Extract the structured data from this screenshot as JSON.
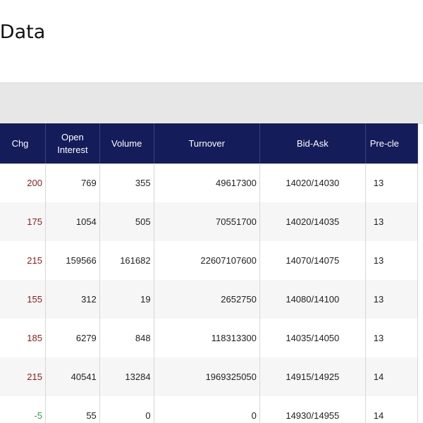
{
  "page": {
    "title": "et Data"
  },
  "table": {
    "headers": [
      "Chg",
      "Open Interest",
      "Volume",
      "Turnover",
      "Bid-Ask",
      "Pre-cle"
    ],
    "rows": [
      {
        "chg": "200",
        "dir": "up",
        "open_interest": "769",
        "volume": "355",
        "turnover": "49617300",
        "bid_ask": "14020/14030",
        "pre_close": "13"
      },
      {
        "chg": "175",
        "dir": "up",
        "open_interest": "1054",
        "volume": "505",
        "turnover": "70551700",
        "bid_ask": "14020/14035",
        "pre_close": "13"
      },
      {
        "chg": "215",
        "dir": "up",
        "open_interest": "159566",
        "volume": "161682",
        "turnover": "22607107600",
        "bid_ask": "14070/14075",
        "pre_close": "13"
      },
      {
        "chg": "155",
        "dir": "up",
        "open_interest": "312",
        "volume": "19",
        "turnover": "2652750",
        "bid_ask": "14080/14100",
        "pre_close": "13"
      },
      {
        "chg": "185",
        "dir": "up",
        "open_interest": "6279",
        "volume": "848",
        "turnover": "118313300",
        "bid_ask": "14035/14050",
        "pre_close": "13"
      },
      {
        "chg": "215",
        "dir": "up",
        "open_interest": "40541",
        "volume": "13284",
        "turnover": "1969325050",
        "bid_ask": "14915/14925",
        "pre_close": "14"
      },
      {
        "chg": "-5",
        "dir": "down",
        "open_interest": "55",
        "volume": "0",
        "turnover": "0",
        "bid_ask": "14930/14955",
        "pre_close": "14"
      }
    ]
  },
  "colors": {
    "header_bg": "#141c59",
    "positive": "#8a1c1c",
    "negative": "#2e9e4f",
    "filter_bar": "#e7e7e7"
  }
}
